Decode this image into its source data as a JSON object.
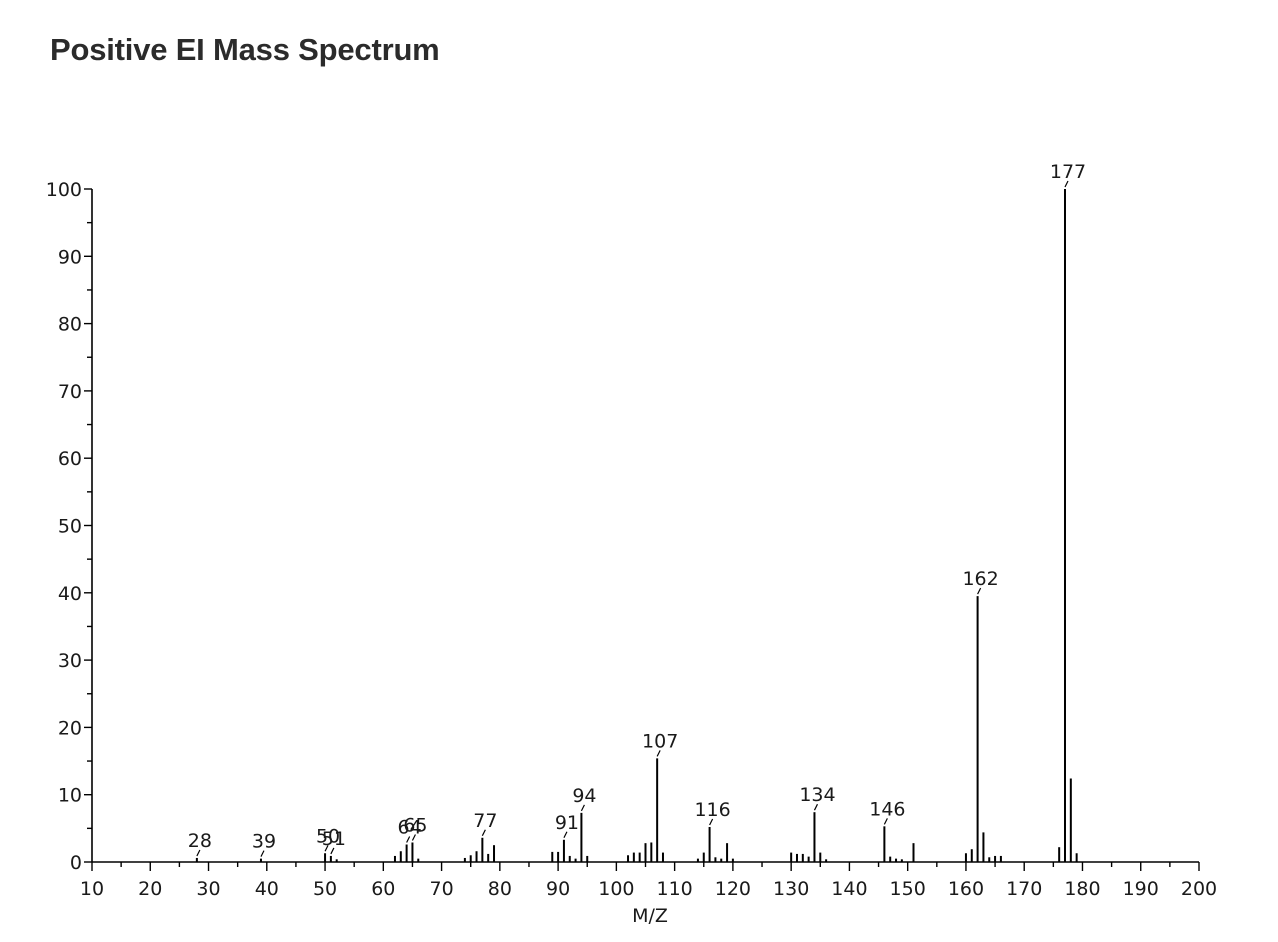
{
  "title": "Positive EI Mass Spectrum",
  "chart_data": {
    "type": "bar",
    "xlabel": "M/Z",
    "ylabel": "",
    "xlim": [
      10,
      200
    ],
    "ylim": [
      0,
      100
    ],
    "x_ticks": [
      10,
      20,
      30,
      40,
      50,
      60,
      70,
      80,
      90,
      100,
      110,
      120,
      130,
      140,
      150,
      160,
      170,
      180,
      190,
      200
    ],
    "y_ticks": [
      0,
      10,
      20,
      30,
      40,
      50,
      60,
      70,
      80,
      90,
      100
    ],
    "grid": false,
    "legend": "none",
    "peaks": [
      {
        "mz": 28,
        "intensity": 0.6,
        "label": "28"
      },
      {
        "mz": 39,
        "intensity": 0.5,
        "label": "39"
      },
      {
        "mz": 50,
        "intensity": 1.3,
        "label": "50"
      },
      {
        "mz": 51,
        "intensity": 0.9,
        "label": "51"
      },
      {
        "mz": 52,
        "intensity": 0.4
      },
      {
        "mz": 62,
        "intensity": 0.9
      },
      {
        "mz": 63,
        "intensity": 1.6
      },
      {
        "mz": 64,
        "intensity": 2.6,
        "label": "64"
      },
      {
        "mz": 65,
        "intensity": 2.9,
        "label": "65"
      },
      {
        "mz": 66,
        "intensity": 0.5
      },
      {
        "mz": 74,
        "intensity": 0.6
      },
      {
        "mz": 75,
        "intensity": 1.0
      },
      {
        "mz": 76,
        "intensity": 1.6
      },
      {
        "mz": 77,
        "intensity": 3.6,
        "label": "77"
      },
      {
        "mz": 78,
        "intensity": 1.2
      },
      {
        "mz": 79,
        "intensity": 2.5
      },
      {
        "mz": 89,
        "intensity": 1.5
      },
      {
        "mz": 90,
        "intensity": 1.5
      },
      {
        "mz": 91,
        "intensity": 3.3,
        "label": "91"
      },
      {
        "mz": 92,
        "intensity": 0.9
      },
      {
        "mz": 93,
        "intensity": 0.5
      },
      {
        "mz": 94,
        "intensity": 7.3,
        "label": "94"
      },
      {
        "mz": 95,
        "intensity": 0.9
      },
      {
        "mz": 102,
        "intensity": 1.0
      },
      {
        "mz": 103,
        "intensity": 1.4
      },
      {
        "mz": 104,
        "intensity": 1.4
      },
      {
        "mz": 105,
        "intensity": 2.8
      },
      {
        "mz": 106,
        "intensity": 2.9
      },
      {
        "mz": 107,
        "intensity": 15.4,
        "label": "107"
      },
      {
        "mz": 108,
        "intensity": 1.4
      },
      {
        "mz": 114,
        "intensity": 0.5
      },
      {
        "mz": 115,
        "intensity": 1.4
      },
      {
        "mz": 116,
        "intensity": 5.2,
        "label": "116"
      },
      {
        "mz": 117,
        "intensity": 0.7
      },
      {
        "mz": 118,
        "intensity": 0.5
      },
      {
        "mz": 119,
        "intensity": 2.8
      },
      {
        "mz": 120,
        "intensity": 0.5
      },
      {
        "mz": 130,
        "intensity": 1.4
      },
      {
        "mz": 131,
        "intensity": 1.2
      },
      {
        "mz": 132,
        "intensity": 1.2
      },
      {
        "mz": 133,
        "intensity": 0.8
      },
      {
        "mz": 134,
        "intensity": 7.4,
        "label": "134"
      },
      {
        "mz": 135,
        "intensity": 1.4
      },
      {
        "mz": 136,
        "intensity": 0.4
      },
      {
        "mz": 146,
        "intensity": 5.3,
        "label": "146"
      },
      {
        "mz": 147,
        "intensity": 0.8
      },
      {
        "mz": 148,
        "intensity": 0.5
      },
      {
        "mz": 149,
        "intensity": 0.4
      },
      {
        "mz": 151,
        "intensity": 2.8
      },
      {
        "mz": 160,
        "intensity": 1.3
      },
      {
        "mz": 161,
        "intensity": 1.9
      },
      {
        "mz": 162,
        "intensity": 39.5,
        "label": "162"
      },
      {
        "mz": 163,
        "intensity": 4.4
      },
      {
        "mz": 164,
        "intensity": 0.7
      },
      {
        "mz": 165,
        "intensity": 0.9
      },
      {
        "mz": 166,
        "intensity": 0.9
      },
      {
        "mz": 176,
        "intensity": 2.2
      },
      {
        "mz": 177,
        "intensity": 100,
        "label": "177"
      },
      {
        "mz": 178,
        "intensity": 12.4
      },
      {
        "mz": 179,
        "intensity": 1.3
      }
    ]
  }
}
